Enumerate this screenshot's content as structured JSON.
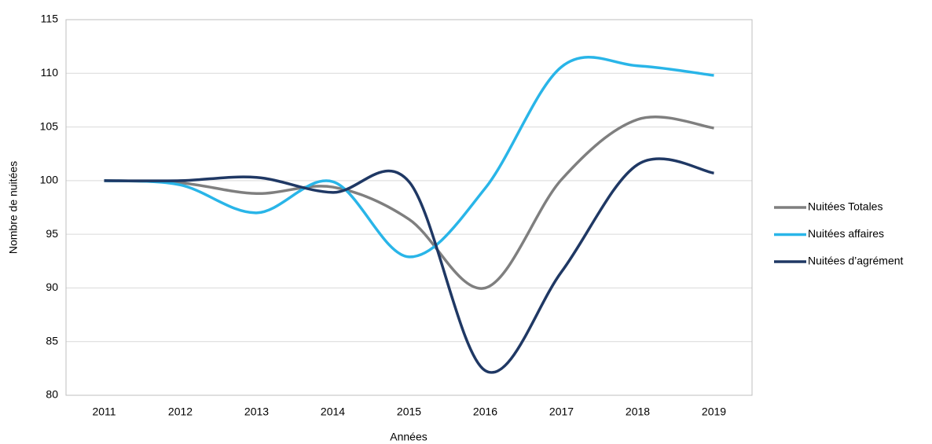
{
  "chart_data": {
    "type": "line",
    "x_label": "Années",
    "y_label": "Nombre de nuitées",
    "categories": [
      "2011",
      "2012",
      "2013",
      "2014",
      "2015",
      "2016",
      "2017",
      "2018",
      "2019"
    ],
    "series": [
      {
        "name": "Nuitées Totales",
        "color": "#7f7f7f",
        "values": [
          100,
          99.8,
          98.8,
          99.4,
          96.4,
          90.0,
          100.1,
          105.7,
          104.9
        ]
      },
      {
        "name": "Nuitées affaires",
        "color": "#29b5e8",
        "values": [
          100,
          99.6,
          97.0,
          99.9,
          92.9,
          99.3,
          110.6,
          110.7,
          109.8
        ]
      },
      {
        "name": "Nuitées d’agrément",
        "color": "#1f3864",
        "values": [
          100,
          100,
          100.3,
          98.9,
          99.9,
          82.3,
          91.5,
          101.5,
          100.7
        ]
      }
    ],
    "ylim": [
      80,
      115
    ],
    "yticks": [
      80,
      85,
      90,
      95,
      100,
      105,
      110,
      115
    ],
    "grid": true,
    "smooth": true,
    "legend": "right"
  }
}
